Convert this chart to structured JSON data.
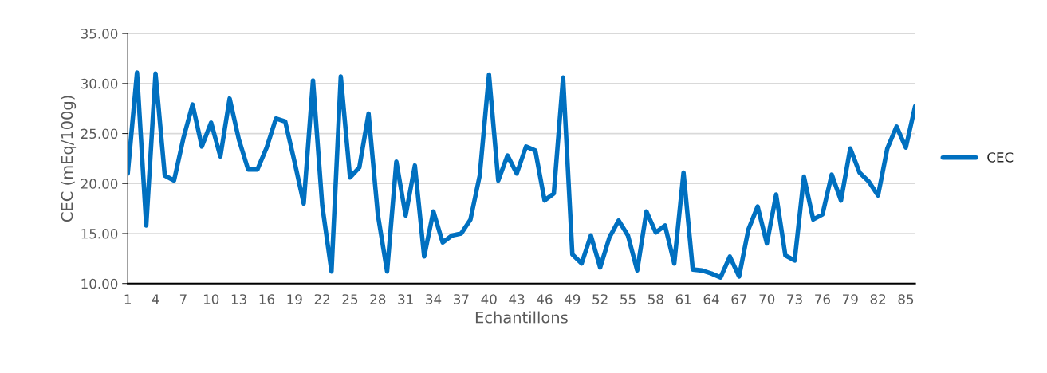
{
  "chart_data": {
    "type": "line",
    "xlabel": "Echantillons",
    "ylabel": "CEC (mEq/100g)",
    "categories": [
      "1",
      null,
      null,
      "4",
      null,
      null,
      "7",
      null,
      null,
      "10",
      null,
      null,
      "13",
      null,
      null,
      "16",
      null,
      null,
      "19",
      null,
      null,
      "22",
      null,
      null,
      "25",
      null,
      null,
      "28",
      null,
      null,
      "31",
      null,
      null,
      "34",
      null,
      null,
      "37",
      null,
      null,
      "40",
      null,
      null,
      "43",
      null,
      null,
      "46",
      null,
      null,
      "49",
      null,
      null,
      "52",
      null,
      null,
      "55",
      null,
      null,
      "58",
      null,
      null,
      "61",
      null,
      null,
      "64",
      null,
      null,
      "67",
      null,
      null,
      "70",
      null,
      null,
      "73",
      null,
      null,
      "76",
      null,
      null,
      "79",
      null,
      null,
      "82",
      null,
      null,
      "85",
      null
    ],
    "series": [
      {
        "name": "CEC",
        "color": "#0070c0",
        "values": [
          21,
          31.1,
          15.8,
          31,
          20.8,
          20.3,
          24.5,
          27.9,
          23.7,
          26.1,
          22.7,
          28.5,
          24.4,
          21.4,
          21.4,
          23.6,
          26.5,
          26.2,
          22.2,
          18,
          30.3,
          17.8,
          11.2,
          30.7,
          20.6,
          21.6,
          27,
          16.9,
          11.2,
          22.2,
          16.8,
          21.8,
          12.7,
          17.2,
          14.1,
          14.8,
          15,
          16.4,
          20.8,
          30.9,
          20.3,
          22.8,
          21,
          23.7,
          23.3,
          18.3,
          19,
          30.6,
          12.9,
          12,
          14.8,
          11.6,
          14.6,
          16.3,
          14.8,
          11.3,
          17.2,
          15.1,
          15.8,
          12,
          21.1,
          11.4,
          11.3,
          11,
          10.6,
          12.7,
          10.7,
          15.4,
          17.7,
          14,
          18.9,
          12.8,
          12.3,
          20.7,
          16.4,
          16.9,
          20.9,
          18.3,
          23.5,
          21.1,
          20.2,
          18.8,
          23.5,
          25.7,
          23.6,
          27.7
        ]
      }
    ],
    "ylim": [
      10,
      35
    ],
    "yticks": [
      {
        "value": 10,
        "label": "10.00"
      },
      {
        "value": 15,
        "label": "15.00"
      },
      {
        "value": 20,
        "label": "20.00"
      },
      {
        "value": 25,
        "label": "25.00"
      },
      {
        "value": 30,
        "label": "30.00"
      },
      {
        "value": 35,
        "label": "35.00"
      }
    ],
    "grid": "y",
    "legend": "right",
    "marker": "none",
    "line_style": "solid"
  }
}
